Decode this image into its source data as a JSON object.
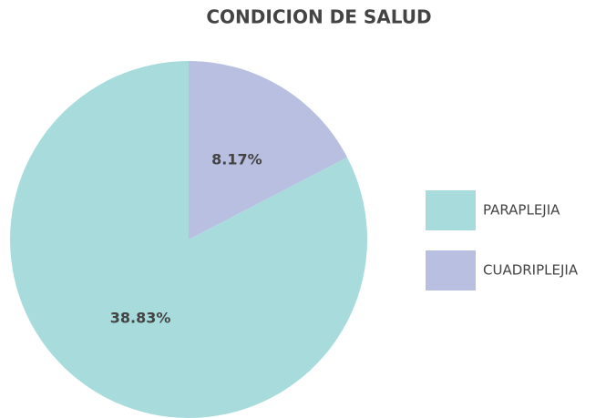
{
  "chart_data": {
    "type": "pie",
    "title": "CONDICION DE SALUD",
    "categories": [
      "PARAPLEJIA",
      "CUADRIPLEJIA"
    ],
    "values": [
      38.83,
      8.17
    ],
    "value_labels": [
      "38.83%",
      "8.17%"
    ],
    "colors": [
      "#a8dcdc",
      "#b9bfe0"
    ],
    "legend": "right"
  }
}
